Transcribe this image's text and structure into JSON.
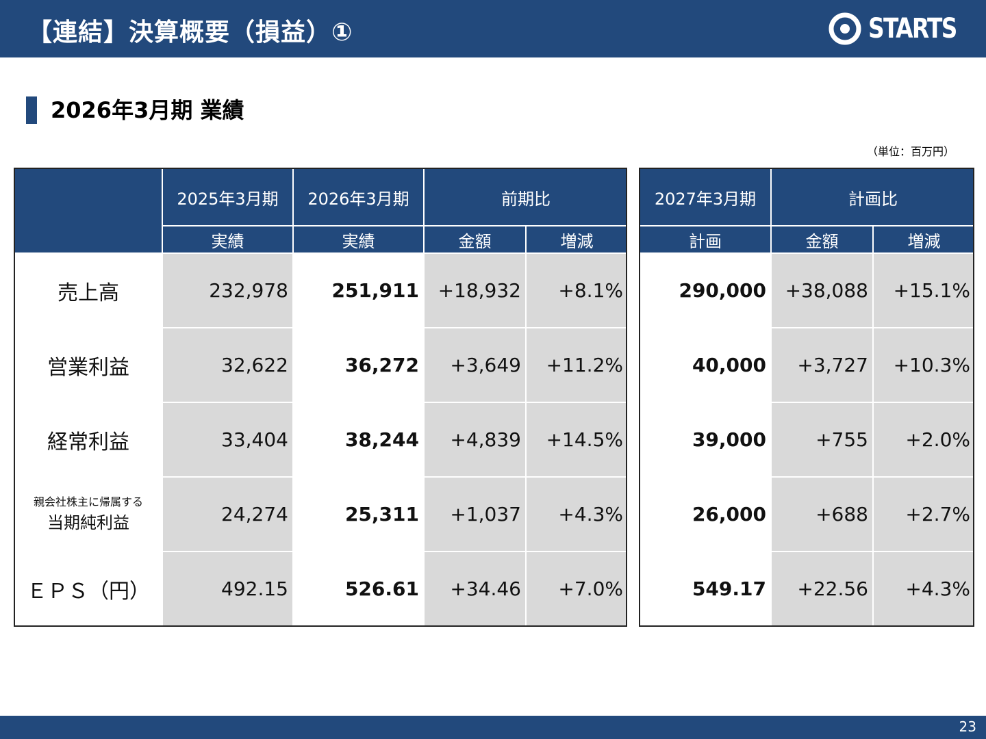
{
  "header": {
    "title": "【連結】決算概要（損益）①",
    "logo_text": "STARTS"
  },
  "section": {
    "title": "2026年3月期 業績",
    "unit_note": "（単位：百万円）"
  },
  "left_table": {
    "col_2025": "2025年3月期",
    "col_2025_sub": "実績",
    "col_2026": "2026年3月期",
    "col_2026_sub": "実績",
    "col_yoy": "前期比",
    "col_yoy_amount": "金額",
    "col_yoy_change": "増減",
    "rows": [
      {
        "label": "売上高",
        "v2025": "232,978",
        "v2026": "251,911",
        "amount": "+18,932",
        "change": "+8.1%"
      },
      {
        "label": "営業利益",
        "v2025": "32,622",
        "v2026": "36,272",
        "amount": "+3,649",
        "change": "+11.2%"
      },
      {
        "label": "経常利益",
        "v2025": "33,404",
        "v2026": "38,244",
        "amount": "+4,839",
        "change": "+14.5%"
      },
      {
        "label_top": "親会社株主に帰属する",
        "label": "当期純利益",
        "v2025": "24,274",
        "v2026": "25,311",
        "amount": "+1,037",
        "change": "+4.3%"
      },
      {
        "label": "ＥＰＳ（円）",
        "v2025": "492.15",
        "v2026": "526.61",
        "amount": "+34.46",
        "change": "+7.0%"
      }
    ]
  },
  "right_table": {
    "col_2027": "2027年3月期",
    "col_2027_sub": "計画",
    "col_plan": "計画比",
    "col_plan_amount": "金額",
    "col_plan_change": "増減",
    "rows": [
      {
        "v2027": "290,000",
        "amount": "+38,088",
        "change": "+15.1%"
      },
      {
        "v2027": "40,000",
        "amount": "+3,727",
        "change": "+10.3%"
      },
      {
        "v2027": "39,000",
        "amount": "+755",
        "change": "+2.0%"
      },
      {
        "v2027": "26,000",
        "amount": "+688",
        "change": "+2.7%"
      },
      {
        "v2027": "549.17",
        "amount": "+22.56",
        "change": "+4.3%"
      }
    ]
  },
  "footer": {
    "page_number": "23"
  },
  "colors": {
    "brand": "#22497c",
    "cell_gray": "#d9d9d9"
  }
}
